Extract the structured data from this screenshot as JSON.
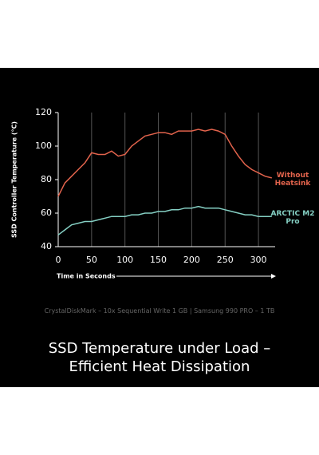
{
  "chart_data": {
    "type": "line",
    "title": "SSD Temperature under Load – Efficient Heat Dissipation",
    "x_label": "Time in Seconds",
    "y_label": "SSD Controller Temperature (°C)",
    "x": [
      0,
      10,
      20,
      30,
      40,
      50,
      60,
      70,
      80,
      90,
      100,
      110,
      120,
      130,
      140,
      150,
      160,
      170,
      180,
      190,
      200,
      210,
      220,
      230,
      240,
      250,
      260,
      270,
      280,
      290,
      300,
      310,
      320
    ],
    "series": [
      {
        "name": "Without Heatsink",
        "color": "#e2634c",
        "values": [
          70,
          78,
          82,
          86,
          90,
          96,
          95,
          95,
          97,
          94,
          95,
          100,
          103,
          106,
          107,
          108,
          108,
          107,
          109,
          109,
          109,
          110,
          109,
          110,
          109,
          107,
          100,
          94,
          89,
          86,
          84,
          82,
          81
        ]
      },
      {
        "name": "ARCTIC M2 Pro",
        "color": "#85d0c4",
        "values": [
          47,
          50,
          53,
          54,
          55,
          55,
          56,
          57,
          58,
          58,
          58,
          59,
          59,
          60,
          60,
          61,
          61,
          62,
          62,
          63,
          63,
          64,
          63,
          63,
          63,
          62,
          61,
          60,
          59,
          59,
          58,
          58,
          58
        ]
      }
    ],
    "xlim": [
      0,
      325
    ],
    "ylim": [
      40,
      120
    ],
    "xticks": [
      0,
      50,
      100,
      150,
      200,
      250,
      300
    ],
    "yticks": [
      40,
      60,
      80,
      100,
      120
    ],
    "grid": true
  },
  "footnote": "CrystalDiskMark – 10x Sequential Write 1 GB | Samsung 990 PRO – 1 TB"
}
